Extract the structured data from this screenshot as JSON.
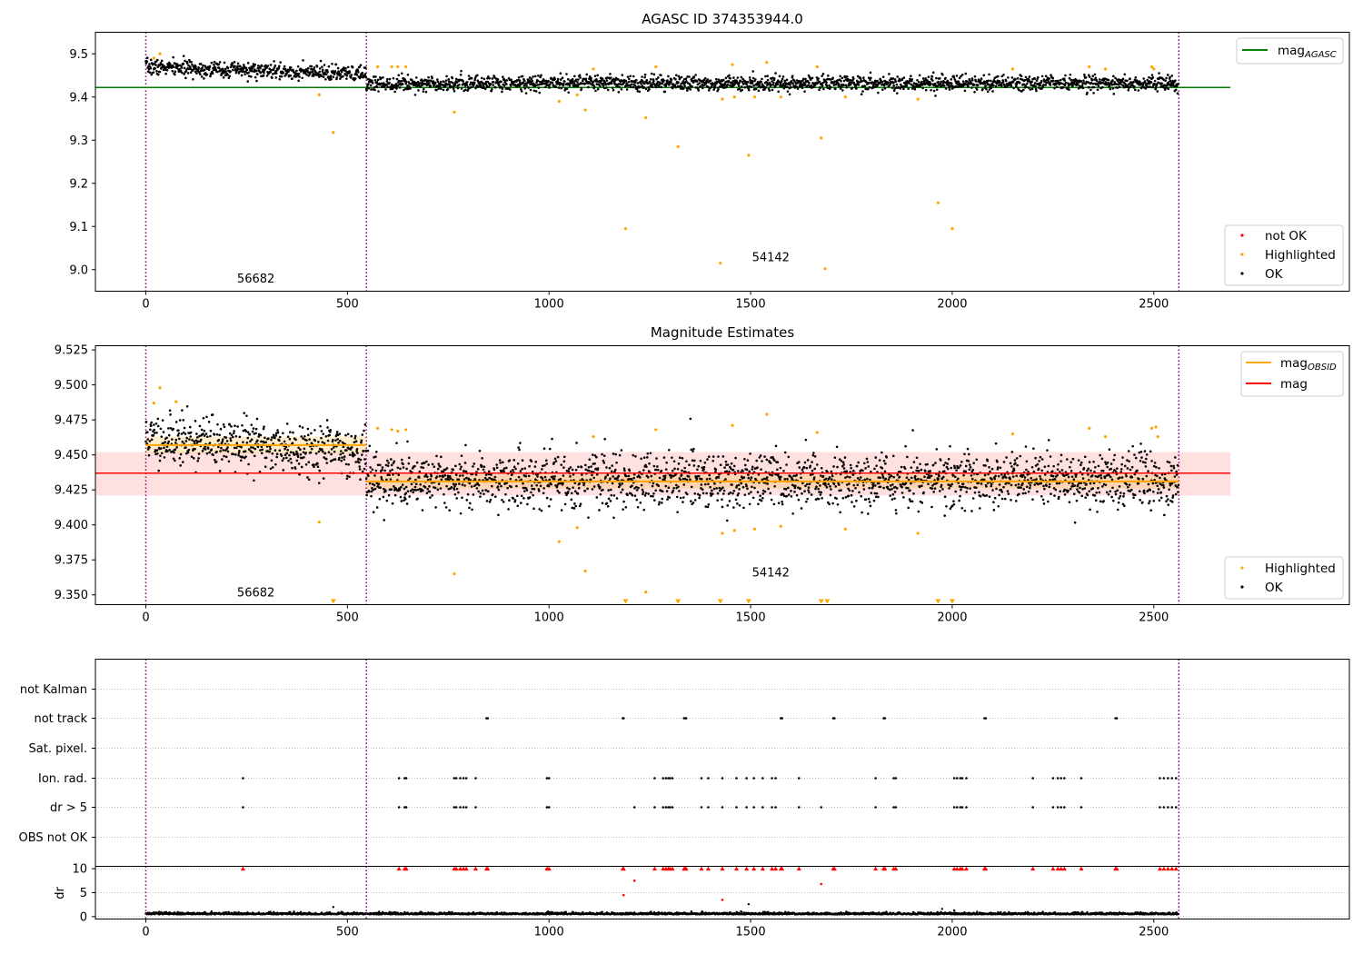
{
  "chart_data": [
    {
      "type": "scatter",
      "title": "AGASC ID 374353944.0",
      "xlim": [
        -125,
        2985
      ],
      "ylim": [
        8.95,
        9.55
      ],
      "xticks": [
        0,
        500,
        1000,
        1500,
        2000,
        2500
      ],
      "yticks": [
        9.0,
        9.1,
        9.2,
        9.3,
        9.4,
        9.5
      ],
      "ytick_labels": [
        "9.0",
        "9.1",
        "9.2",
        "9.3",
        "9.4",
        "9.5"
      ],
      "vlines": [
        0,
        547,
        2562
      ],
      "obsid_labels": [
        {
          "text": "56682",
          "x": 273,
          "y": 8.97
        },
        {
          "text": "54142",
          "x": 1550,
          "y": 9.02
        }
      ],
      "hlines": [
        {
          "name": "mag",
          "subscript": "AGASC",
          "y": 9.422,
          "x": [
            -125,
            2690
          ],
          "color": "#008000"
        }
      ],
      "series": [
        {
          "name": "not OK",
          "color": "#ff0000",
          "points": []
        },
        {
          "name": "Highlighted",
          "color": "#ffa500",
          "points": [
            [
              20,
              9.49
            ],
            [
              35,
              9.5
            ],
            [
              430,
              9.405
            ],
            [
              465,
              9.318
            ],
            [
              575,
              9.47
            ],
            [
              610,
              9.47
            ],
            [
              625,
              9.47
            ],
            [
              645,
              9.47
            ],
            [
              765,
              9.365
            ],
            [
              1025,
              9.39
            ],
            [
              1070,
              9.405
            ],
            [
              1090,
              9.37
            ],
            [
              1110,
              9.465
            ],
            [
              1190,
              9.095
            ],
            [
              1240,
              9.352
            ],
            [
              1265,
              9.47
            ],
            [
              1320,
              9.285
            ],
            [
              1425,
              9.015
            ],
            [
              1430,
              9.395
            ],
            [
              1455,
              9.475
            ],
            [
              1460,
              9.4
            ],
            [
              1495,
              9.265
            ],
            [
              1510,
              9.4
            ],
            [
              1540,
              9.48
            ],
            [
              1575,
              9.4
            ],
            [
              1665,
              9.47
            ],
            [
              1675,
              9.305
            ],
            [
              1685,
              9.002
            ],
            [
              1735,
              9.4
            ],
            [
              1915,
              9.395
            ],
            [
              1965,
              9.155
            ],
            [
              2000,
              9.095
            ],
            [
              2150,
              9.465
            ],
            [
              2340,
              9.47
            ],
            [
              2380,
              9.465
            ],
            [
              2495,
              9.47
            ],
            [
              2500,
              9.465
            ]
          ]
        },
        {
          "name": "OK",
          "color": "#000000",
          "generator": {
            "segments": [
              {
                "x": [
                  0,
                  547
                ],
                "y0": 9.47,
                "y1": 9.452,
                "sd": 0.009
              },
              {
                "x": [
                  547,
                  2562
                ],
                "y0": 9.432,
                "y1": 9.432,
                "sd": 0.009
              }
            ],
            "n": 2560,
            "seed": 7
          }
        }
      ],
      "legend": {
        "top_right": [
          "mag_AGASC"
        ],
        "bottom_right": [
          "not OK",
          "Highlighted",
          "OK"
        ]
      }
    },
    {
      "type": "scatter",
      "title": "Magnitude Estimates",
      "xlim": [
        -125,
        2985
      ],
      "ylim": [
        9.343,
        9.528
      ],
      "xticks": [
        0,
        500,
        1000,
        1500,
        2000,
        2500
      ],
      "yticks": [
        9.35,
        9.375,
        9.4,
        9.425,
        9.45,
        9.475,
        9.5,
        9.525
      ],
      "ytick_labels": [
        "9.350",
        "9.375",
        "9.400",
        "9.425",
        "9.450",
        "9.475",
        "9.500",
        "9.525"
      ],
      "vlines": [
        0,
        547,
        2562
      ],
      "obsid_labels": [
        {
          "text": "56682",
          "x": 273,
          "y": 9.349
        },
        {
          "text": "54142",
          "x": 1550,
          "y": 9.363
        }
      ],
      "hlines": [
        {
          "name": "mag",
          "subscript": "OBSID",
          "color": "#ffa500",
          "segments": [
            {
              "x": [
                0,
                547
              ],
              "y": 9.457,
              "band": 0.006
            },
            {
              "x": [
                547,
                2562
              ],
              "y": 9.431,
              "band": 0.005
            }
          ]
        },
        {
          "name": "mag",
          "subscript": "",
          "color": "#ff0000",
          "y": 9.437,
          "x": [
            -125,
            2690
          ],
          "band": [
            9.421,
            9.452
          ]
        }
      ],
      "series": [
        {
          "name": "Highlighted",
          "color": "#ffa500",
          "points": [
            [
              20,
              9.487
            ],
            [
              35,
              9.498
            ],
            [
              75,
              9.488
            ],
            [
              430,
              9.402
            ],
            [
              575,
              9.469
            ],
            [
              610,
              9.468
            ],
            [
              625,
              9.467
            ],
            [
              645,
              9.468
            ],
            [
              765,
              9.365
            ],
            [
              1025,
              9.388
            ],
            [
              1070,
              9.398
            ],
            [
              1090,
              9.367
            ],
            [
              1110,
              9.463
            ],
            [
              1240,
              9.352
            ],
            [
              1265,
              9.468
            ],
            [
              1430,
              9.394
            ],
            [
              1455,
              9.471
            ],
            [
              1460,
              9.396
            ],
            [
              1510,
              9.397
            ],
            [
              1540,
              9.479
            ],
            [
              1575,
              9.399
            ],
            [
              1665,
              9.466
            ],
            [
              1735,
              9.397
            ],
            [
              1915,
              9.394
            ],
            [
              2150,
              9.465
            ],
            [
              2340,
              9.469
            ],
            [
              2380,
              9.463
            ],
            [
              2495,
              9.469
            ],
            [
              2505,
              9.47
            ],
            [
              2510,
              9.463
            ]
          ],
          "clipped_low": [
            465,
            1190,
            1320,
            1425,
            1495,
            1675,
            1690,
            1965,
            2000
          ]
        },
        {
          "name": "OK",
          "color": "#000000",
          "generator": {
            "segments": [
              {
                "x": [
                  0,
                  547
                ],
                "y0": 9.462,
                "y1": 9.452,
                "sd": 0.009
              },
              {
                "x": [
                  547,
                  2562
                ],
                "y0": 9.432,
                "y1": 9.432,
                "sd": 0.0095
              }
            ],
            "n": 2560,
            "seed": 11
          }
        }
      ],
      "legend": {
        "top_right": [
          "mag_OBSID",
          "mag"
        ],
        "bottom_right": [
          "Highlighted",
          "OK"
        ]
      }
    },
    {
      "type": "scatter",
      "title": "",
      "xlim": [
        -125,
        2985
      ],
      "xticks": [
        0,
        500,
        1000,
        1500,
        2000,
        2500
      ],
      "vlines": [
        0,
        547,
        2562
      ],
      "flag_rows": [
        "not Kalman",
        "not track",
        "Sat. pixel.",
        "Ion. rad.",
        "dr > 5",
        "OBS not OK"
      ],
      "flags": {
        "not Kalman": [],
        "not track": [
          845,
          848,
          1183,
          1185,
          1335,
          1338,
          1340,
          1575,
          1578,
          1705,
          1708,
          1830,
          1833,
          2080,
          2083,
          2405,
          2408
        ],
        "Sat. pixel.": [],
        "Ion. rad.": [
          241,
          628,
          642,
          646,
          765,
          770,
          780,
          788,
          795,
          818,
          995,
          1000,
          1262,
          1283,
          1290,
          1296,
          1300,
          1306,
          1378,
          1395,
          1430,
          1465,
          1490,
          1508,
          1530,
          1553,
          1562,
          1620,
          1810,
          1855,
          1860,
          2005,
          2012,
          2020,
          2025,
          2035,
          2200,
          2250,
          2262,
          2270,
          2278,
          2320,
          2515,
          2525,
          2535,
          2545,
          2555
        ],
        "dr > 5": [
          241,
          628,
          642,
          646,
          765,
          770,
          780,
          788,
          795,
          818,
          995,
          1000,
          1212,
          1262,
          1283,
          1290,
          1296,
          1300,
          1306,
          1378,
          1395,
          1430,
          1465,
          1490,
          1508,
          1530,
          1553,
          1562,
          1620,
          1675,
          1810,
          1855,
          1860,
          2005,
          2012,
          2020,
          2025,
          2035,
          2200,
          2250,
          2262,
          2270,
          2278,
          2320,
          2515,
          2525,
          2535,
          2545,
          2555
        ],
        "OBS not OK": []
      },
      "dr_axis": {
        "ylabel": "dr",
        "ylim": [
          -0.5,
          10.5
        ],
        "yticks": [
          0,
          5,
          10
        ],
        "ok_generator": {
          "mean": 0.45,
          "sd": 0.2,
          "n": 2560,
          "seed": 23
        },
        "extra_points": [
          [
            465,
            2.0
          ],
          [
            1495,
            2.6
          ],
          [
            1975,
            1.6
          ],
          [
            2005,
            1.3
          ]
        ],
        "capped_at": 10,
        "capped_x": [
          241,
          628,
          642,
          646,
          765,
          770,
          780,
          788,
          795,
          818,
          845,
          848,
          995,
          1000,
          1183,
          1185,
          1262,
          1283,
          1290,
          1296,
          1300,
          1306,
          1335,
          1338,
          1340,
          1378,
          1395,
          1430,
          1465,
          1490,
          1508,
          1530,
          1553,
          1562,
          1575,
          1578,
          1620,
          1705,
          1708,
          1810,
          1830,
          1833,
          1855,
          1860,
          2005,
          2012,
          2020,
          2025,
          2035,
          2080,
          2083,
          2200,
          2250,
          2262,
          2270,
          2278,
          2320,
          2405,
          2408,
          2515,
          2525,
          2535,
          2545,
          2555
        ],
        "red_points": [
          [
            1185,
            4.5
          ],
          [
            1212,
            7.5
          ],
          [
            1430,
            3.5
          ],
          [
            1675,
            6.8
          ]
        ]
      }
    }
  ]
}
